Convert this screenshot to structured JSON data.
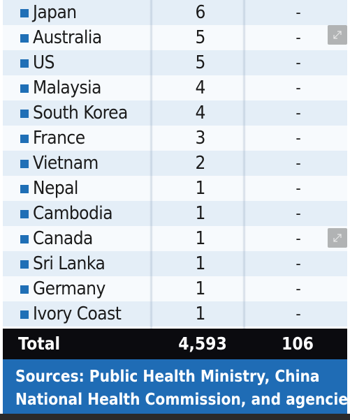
{
  "rows": [
    {
      "country": "Japan",
      "cases": "6",
      "deaths": "-"
    },
    {
      "country": "Australia",
      "cases": "5",
      "deaths": "-"
    },
    {
      "country": "US",
      "cases": "5",
      "deaths": "-"
    },
    {
      "country": "Malaysia",
      "cases": "4",
      "deaths": "-"
    },
    {
      "country": "South Korea",
      "cases": "4",
      "deaths": "-"
    },
    {
      "country": "France",
      "cases": "3",
      "deaths": "-"
    },
    {
      "country": "Vietnam",
      "cases": "2",
      "deaths": "-"
    },
    {
      "country": "Nepal",
      "cases": "1",
      "deaths": "-"
    },
    {
      "country": "Cambodia",
      "cases": "1",
      "deaths": "-"
    },
    {
      "country": "Canada",
      "cases": "1",
      "deaths": "-"
    },
    {
      "country": "Sri Lanka",
      "cases": "1",
      "deaths": "-"
    },
    {
      "country": "Germany",
      "cases": "1",
      "deaths": "-"
    },
    {
      "country": "Ivory Coast",
      "cases": "1",
      "deaths": "-"
    }
  ],
  "total": {
    "label": "Total",
    "cases": "4,593",
    "deaths": "106"
  },
  "sources": {
    "line1": "Sources: Public Health Ministry, China",
    "line2": "National Health Commission, and agencies"
  },
  "colors": {
    "accent_blue": "#1f6cb5",
    "row_light": "#e4eef7",
    "total_bg": "#0b0b0f"
  },
  "icons": {
    "row_marker": "blue-square-icon",
    "expand": "expand-icon"
  }
}
